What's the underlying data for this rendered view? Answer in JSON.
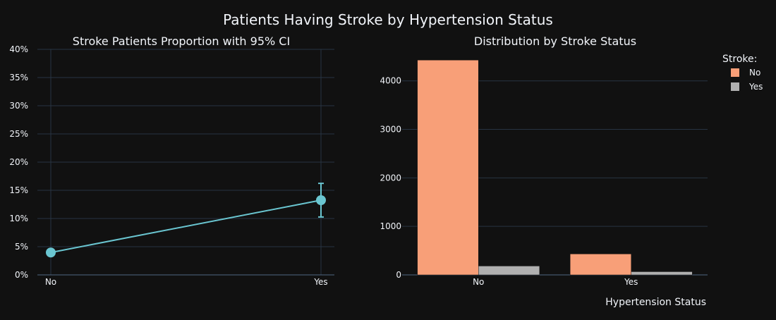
{
  "title": "Patients Having Stroke by Hypertension Status",
  "chart_data": [
    {
      "type": "line",
      "title": "Stroke Patients Proportion with 95% CI",
      "categories": [
        "No",
        "Yes"
      ],
      "values": [
        0.0397,
        0.1325
      ],
      "error_lower": [
        0.0342,
        0.1027
      ],
      "error_upper": [
        0.0452,
        0.1623
      ],
      "ylim": [
        0,
        0.4
      ],
      "yticks": [
        "0%",
        "5%",
        "10%",
        "15%",
        "20%",
        "25%",
        "30%",
        "35%",
        "40%"
      ],
      "color": "#6ac6d1",
      "grid": true
    },
    {
      "type": "bar",
      "title": "Distribution by Stroke Status",
      "xlabel": "Hypertension Status",
      "categories": [
        "No",
        "Yes"
      ],
      "series": [
        {
          "name": "No",
          "values": [
            4429,
            432
          ],
          "color": "#f89f78"
        },
        {
          "name": "Yes",
          "values": [
            183,
            66
          ],
          "color": "#b0b0b0"
        }
      ],
      "ylim": [
        0,
        4650
      ],
      "yticks": [
        0,
        1000,
        2000,
        3000,
        4000
      ],
      "legend_title": "Stroke:",
      "legend_position": "top-right",
      "grid": true
    }
  ]
}
